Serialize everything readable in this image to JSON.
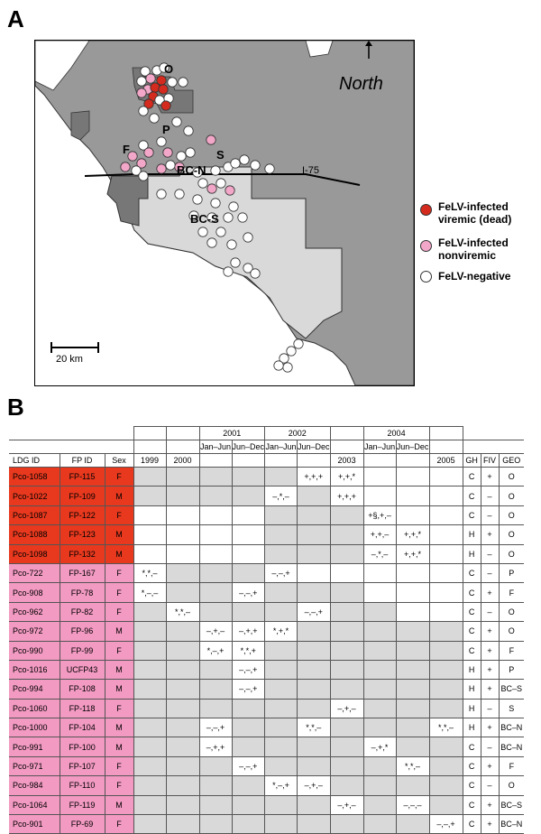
{
  "panels": {
    "a": "A",
    "b": "B"
  },
  "map": {
    "north_label": "North",
    "highway_label": "I-75",
    "scale_label": "20 km",
    "region_labels": [
      "O",
      "P",
      "S",
      "F",
      "BC-N",
      "BC-S"
    ],
    "legend": [
      {
        "label_lines": [
          "FeLV-infected",
          "viremic (dead)"
        ],
        "color": "#d42b1e"
      },
      {
        "label_lines": [
          "FeLV-infected",
          "nonviremic"
        ],
        "color": "#f2a7c8"
      },
      {
        "label_lines": [
          "FeLV-negative"
        ],
        "color": "#ffffff"
      }
    ]
  },
  "table": {
    "headers": {
      "ldg_id": "LDG ID",
      "fp_id": "FP ID",
      "sex": "Sex",
      "y1999": "1999",
      "y2000": "2000",
      "y2001": "2001",
      "y2002": "2002",
      "y2003": "2003",
      "y2004": "2004",
      "y2005": "2005",
      "jan_jun": "Jan–Jun",
      "jun_dec": "Jun–Dec",
      "gh": "GH",
      "fiv": "FIV",
      "geo": "GEO"
    },
    "rows": [
      {
        "ldg": "Pco-1058",
        "fp": "FP-115",
        "sex": "F",
        "status": "dead",
        "cells": [
          "",
          "",
          "",
          "",
          "",
          "+,+,+",
          "+,+,*",
          "",
          "",
          ""
        ],
        "gh": "C",
        "fiv": "+",
        "geo": "O"
      },
      {
        "ldg": "Pco-1022",
        "fp": "FP-109",
        "sex": "M",
        "status": "dead",
        "cells": [
          "",
          "",
          "",
          "",
          "–,*,–",
          "",
          "+,+,+",
          "",
          "",
          ""
        ],
        "gh": "C",
        "fiv": "–",
        "geo": "O"
      },
      {
        "ldg": "Pco-1087",
        "fp": "FP-122",
        "sex": "F",
        "status": "dead",
        "cells": [
          "",
          "",
          "",
          "",
          "",
          "",
          "",
          "+§,+,–",
          "",
          ""
        ],
        "gh": "C",
        "fiv": "–",
        "geo": "O"
      },
      {
        "ldg": "Pco-1088",
        "fp": "FP-123",
        "sex": "M",
        "status": "dead",
        "cells": [
          "",
          "",
          "",
          "",
          "",
          "",
          "",
          "+,+,–",
          "+,+,*",
          ""
        ],
        "gh": "H",
        "fiv": "+",
        "geo": "O"
      },
      {
        "ldg": "Pco-1098",
        "fp": "FP-132",
        "sex": "M",
        "status": "dead",
        "cells": [
          "",
          "",
          "",
          "",
          "",
          "",
          "",
          "–,*,–",
          "+,+,*",
          ""
        ],
        "gh": "H",
        "fiv": "–",
        "geo": "O"
      },
      {
        "ldg": "Pco-722",
        "fp": "FP-167",
        "sex": "F",
        "status": "nonviremic",
        "cells": [
          "*,*,–",
          "",
          "",
          "",
          "–,–,+",
          "",
          "",
          "",
          "",
          ""
        ],
        "gh": "C",
        "fiv": "–",
        "geo": "P"
      },
      {
        "ldg": "Pco-908",
        "fp": "FP-78",
        "sex": "F",
        "status": "nonviremic",
        "cells": [
          "*,–,–",
          "",
          "",
          "–,–,+",
          "",
          "",
          "",
          "",
          "",
          ""
        ],
        "gh": "C",
        "fiv": "+",
        "geo": "F"
      },
      {
        "ldg": "Pco-962",
        "fp": "FP-82",
        "sex": "F",
        "status": "nonviremic",
        "cells": [
          "",
          "*,*,–",
          "",
          "",
          "",
          "–,–,+",
          "",
          "",
          "",
          ""
        ],
        "gh": "C",
        "fiv": "–",
        "geo": "O"
      },
      {
        "ldg": "Pco-972",
        "fp": "FP-96",
        "sex": "M",
        "status": "nonviremic",
        "cells": [
          "",
          "",
          "–,+,–",
          "–,+,+",
          "*,+,*",
          "",
          "",
          "",
          "",
          ""
        ],
        "gh": "C",
        "fiv": "+",
        "geo": "O"
      },
      {
        "ldg": "Pco-990",
        "fp": "FP-99",
        "sex": "F",
        "status": "nonviremic",
        "cells": [
          "",
          "",
          "*,–,+",
          "*,*,+",
          "",
          "",
          "",
          "",
          "",
          ""
        ],
        "gh": "C",
        "fiv": "+",
        "geo": "F"
      },
      {
        "ldg": "Pco-1016",
        "fp": "UCFP43",
        "sex": "M",
        "status": "nonviremic",
        "cells": [
          "",
          "",
          "",
          "–,–,+",
          "",
          "",
          "",
          "",
          "",
          ""
        ],
        "gh": "H",
        "fiv": "+",
        "geo": "P"
      },
      {
        "ldg": "Pco-994",
        "fp": "FP-108",
        "sex": "M",
        "status": "nonviremic",
        "cells": [
          "",
          "",
          "",
          "–,–,+",
          "",
          "",
          "",
          "",
          "",
          ""
        ],
        "gh": "H",
        "fiv": "+",
        "geo": "BC–S"
      },
      {
        "ldg": "Pco-1060",
        "fp": "FP-118",
        "sex": "F",
        "status": "nonviremic",
        "cells": [
          "",
          "",
          "",
          "",
          "",
          "",
          "–,+,–",
          "",
          "",
          ""
        ],
        "gh": "H",
        "fiv": "–",
        "geo": "S"
      },
      {
        "ldg": "Pco-1000",
        "fp": "FP-104",
        "sex": "M",
        "status": "nonviremic",
        "cells": [
          "",
          "",
          "–,–,+",
          "",
          "",
          "*,*,–",
          "",
          "",
          "",
          "*,*,–"
        ],
        "gh": "H",
        "fiv": "+",
        "geo": "BC–N"
      },
      {
        "ldg": "Pco-991",
        "fp": "FP-100",
        "sex": "M",
        "status": "nonviremic",
        "cells": [
          "",
          "",
          "–,+,+",
          "",
          "",
          "",
          "",
          "–,+,*",
          "",
          ""
        ],
        "gh": "C",
        "fiv": "–",
        "geo": "BC–N"
      },
      {
        "ldg": "Pco-971",
        "fp": "FP-107",
        "sex": "F",
        "status": "nonviremic",
        "cells": [
          "",
          "",
          "",
          "–,–,+",
          "",
          "",
          "",
          "",
          "*,*,–",
          ""
        ],
        "gh": "C",
        "fiv": "+",
        "geo": "F"
      },
      {
        "ldg": "Pco-984",
        "fp": "FP-110",
        "sex": "F",
        "status": "nonviremic",
        "cells": [
          "",
          "",
          "",
          "",
          "*,–,+",
          "–,+,–",
          "",
          "",
          "",
          ""
        ],
        "gh": "C",
        "fiv": "–",
        "geo": "O"
      },
      {
        "ldg": "Pco-1064",
        "fp": "FP-119",
        "sex": "M",
        "status": "nonviremic",
        "cells": [
          "",
          "",
          "",
          "",
          "",
          "",
          "–,+,–",
          "",
          "–,–,–",
          ""
        ],
        "gh": "C",
        "fiv": "+",
        "geo": "BC–S"
      },
      {
        "ldg": "Pco-901",
        "fp": "FP-69",
        "sex": "F",
        "status": "nonviremic",
        "cells": [
          "",
          "",
          "",
          "",
          "",
          "",
          "",
          "",
          "",
          "–,–,+"
        ],
        "gh": "C",
        "fiv": "+",
        "geo": "BC–N"
      }
    ],
    "shading": [
      [
        1,
        1,
        1,
        1,
        1,
        0,
        0,
        0,
        0,
        0
      ],
      [
        1,
        1,
        1,
        1,
        0,
        1,
        0,
        0,
        0,
        0
      ],
      [
        0,
        0,
        0,
        0,
        1,
        1,
        1,
        0,
        0,
        0
      ],
      [
        0,
        0,
        0,
        0,
        1,
        1,
        1,
        0,
        0,
        0
      ],
      [
        0,
        0,
        0,
        0,
        1,
        1,
        1,
        0,
        0,
        0
      ],
      [
        0,
        1,
        1,
        1,
        0,
        0,
        0,
        0,
        0,
        0
      ],
      [
        0,
        1,
        1,
        0,
        1,
        1,
        1,
        0,
        0,
        0
      ],
      [
        1,
        0,
        1,
        1,
        1,
        0,
        1,
        1,
        0,
        0
      ],
      [
        1,
        1,
        0,
        0,
        0,
        1,
        1,
        1,
        1,
        1
      ],
      [
        1,
        1,
        0,
        0,
        1,
        1,
        1,
        1,
        1,
        1
      ],
      [
        1,
        1,
        1,
        0,
        1,
        1,
        1,
        1,
        1,
        1
      ],
      [
        1,
        1,
        1,
        0,
        1,
        1,
        1,
        1,
        1,
        1
      ],
      [
        1,
        1,
        1,
        1,
        1,
        1,
        0,
        1,
        1,
        1
      ],
      [
        1,
        1,
        0,
        1,
        1,
        0,
        1,
        1,
        1,
        0
      ],
      [
        1,
        1,
        0,
        1,
        1,
        1,
        1,
        0,
        1,
        1
      ],
      [
        1,
        1,
        1,
        0,
        1,
        1,
        1,
        1,
        0,
        1
      ],
      [
        1,
        1,
        1,
        1,
        0,
        0,
        1,
        1,
        1,
        1
      ],
      [
        1,
        1,
        1,
        1,
        1,
        1,
        0,
        1,
        0,
        1
      ],
      [
        1,
        1,
        1,
        1,
        1,
        1,
        1,
        1,
        1,
        0
      ]
    ]
  }
}
